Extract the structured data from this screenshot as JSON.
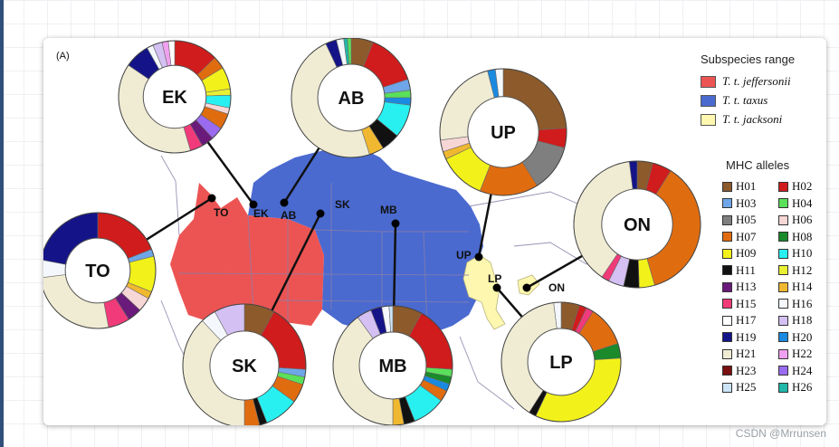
{
  "panel_label": "(A)",
  "watermark": "CSDN @Mrrunsen",
  "legend": {
    "subspecies_title": "Subspecies range",
    "subspecies": [
      {
        "name": "T. t. jeffersonii",
        "color": "#ec5454"
      },
      {
        "name": "T. t. taxus",
        "color": "#4a6ad0"
      },
      {
        "name": "T. t. jacksoni",
        "color": "#fdf7b0"
      }
    ],
    "alleles_title": "MHC alleles",
    "alleles": [
      {
        "id": "H01",
        "color": "#8c5a2b"
      },
      {
        "id": "H02",
        "color": "#d01c1c"
      },
      {
        "id": "H03",
        "color": "#6ea6e8"
      },
      {
        "id": "H04",
        "color": "#5ae05a"
      },
      {
        "id": "H05",
        "color": "#7f7f7f"
      },
      {
        "id": "H06",
        "color": "#f7d6d6"
      },
      {
        "id": "H07",
        "color": "#e06c10"
      },
      {
        "id": "H08",
        "color": "#1a8a2a"
      },
      {
        "id": "H09",
        "color": "#f2f21a"
      },
      {
        "id": "H10",
        "color": "#28f0f0"
      },
      {
        "id": "H11",
        "color": "#111111"
      },
      {
        "id": "H12",
        "color": "#e8f032"
      },
      {
        "id": "H13",
        "color": "#6a1a7a"
      },
      {
        "id": "H14",
        "color": "#f0b830"
      },
      {
        "id": "H15",
        "color": "#f03a7a"
      },
      {
        "id": "H16",
        "color": "#f4f8fc"
      },
      {
        "id": "H17",
        "color": "#ffffff"
      },
      {
        "id": "H18",
        "color": "#d4c0f2"
      },
      {
        "id": "H19",
        "color": "#141488"
      },
      {
        "id": "H20",
        "color": "#1a8ae0"
      },
      {
        "id": "H21",
        "color": "#f0ecd4"
      },
      {
        "id": "H22",
        "color": "#f0a0f0"
      },
      {
        "id": "H23",
        "color": "#7a1010"
      },
      {
        "id": "H24",
        "color": "#9a6af0"
      },
      {
        "id": "H25",
        "color": "#cce4f8"
      },
      {
        "id": "H26",
        "color": "#20b8a8"
      }
    ]
  },
  "sites": [
    {
      "code": "EK",
      "pie_label": "EK"
    },
    {
      "code": "AB",
      "pie_label": "AB"
    },
    {
      "code": "UP",
      "pie_label": "UP"
    },
    {
      "code": "TO",
      "pie_label": "TO"
    },
    {
      "code": "SK",
      "pie_label": "SK"
    },
    {
      "code": "MB",
      "pie_label": "MB"
    },
    {
      "code": "LP",
      "pie_label": "LP"
    },
    {
      "code": "ON",
      "pie_label": "ON"
    }
  ],
  "pies": {
    "EK": [
      [
        "H02",
        0.14
      ],
      [
        "H07",
        0.04
      ],
      [
        "H09",
        0.07
      ],
      [
        "H12",
        0.02
      ],
      [
        "H10",
        0.04
      ],
      [
        "H06",
        0.02
      ],
      [
        "H07",
        0.05
      ],
      [
        "H24",
        0.04
      ],
      [
        "H13",
        0.04
      ],
      [
        "H15",
        0.04
      ],
      [
        "H21",
        0.43
      ],
      [
        "H19",
        0.08
      ],
      [
        "H16",
        0.02
      ],
      [
        "H18",
        0.03
      ],
      [
        "H22",
        0.02
      ],
      [
        "H17",
        0.02
      ]
    ],
    "AB": [
      [
        "H01",
        0.06
      ],
      [
        "H02",
        0.14
      ],
      [
        "H03",
        0.03
      ],
      [
        "H04",
        0.02
      ],
      [
        "H20",
        0.02
      ],
      [
        "H10",
        0.09
      ],
      [
        "H11",
        0.05
      ],
      [
        "H14",
        0.04
      ],
      [
        "H21",
        0.48
      ],
      [
        "H19",
        0.03
      ],
      [
        "H16",
        0.02
      ],
      [
        "H26",
        0.01
      ],
      [
        "H04",
        0.01
      ]
    ],
    "UP": [
      [
        "H01",
        0.24
      ],
      [
        "H02",
        0.05
      ],
      [
        "H05",
        0.12
      ],
      [
        "H07",
        0.15
      ],
      [
        "H09",
        0.12
      ],
      [
        "H14",
        0.02
      ],
      [
        "H06",
        0.03
      ],
      [
        "H21",
        0.23
      ],
      [
        "H20",
        0.02
      ],
      [
        "H16",
        0.02
      ]
    ],
    "TO": [
      [
        "H02",
        0.19
      ],
      [
        "H03",
        0.02
      ],
      [
        "H09",
        0.1
      ],
      [
        "H14",
        0.02
      ],
      [
        "H06",
        0.04
      ],
      [
        "H13",
        0.04
      ],
      [
        "H15",
        0.06
      ],
      [
        "H21",
        0.26
      ],
      [
        "H16",
        0.05
      ],
      [
        "H19",
        0.22
      ]
    ],
    "SK": [
      [
        "H01",
        0.08
      ],
      [
        "H02",
        0.18
      ],
      [
        "H03",
        0.02
      ],
      [
        "H04",
        0.02
      ],
      [
        "H07",
        0.05
      ],
      [
        "H10",
        0.09
      ],
      [
        "H11",
        0.02
      ],
      [
        "H07",
        0.04
      ],
      [
        "H21",
        0.38
      ],
      [
        "H16",
        0.04
      ],
      [
        "H18",
        0.08
      ]
    ],
    "MB": [
      [
        "H01",
        0.08
      ],
      [
        "H02",
        0.18
      ],
      [
        "H04",
        0.02
      ],
      [
        "H08",
        0.02
      ],
      [
        "H20",
        0.02
      ],
      [
        "H07",
        0.03
      ],
      [
        "H10",
        0.09
      ],
      [
        "H11",
        0.03
      ],
      [
        "H14",
        0.03
      ],
      [
        "H21",
        0.4
      ],
      [
        "H18",
        0.04
      ],
      [
        "H19",
        0.03
      ],
      [
        "H16",
        0.02
      ],
      [
        "H25",
        0.01
      ]
    ],
    "LP": [
      [
        "H01",
        0.05
      ],
      [
        "H02",
        0.02
      ],
      [
        "H15",
        0.02
      ],
      [
        "H07",
        0.11
      ],
      [
        "H08",
        0.04
      ],
      [
        "H09",
        0.33
      ],
      [
        "H11",
        0.02
      ],
      [
        "H21",
        0.39
      ],
      [
        "H16",
        0.02
      ]
    ],
    "ON": [
      [
        "H01",
        0.04
      ],
      [
        "H02",
        0.05
      ],
      [
        "H07",
        0.37
      ],
      [
        "H09",
        0.04
      ],
      [
        "H11",
        0.04
      ],
      [
        "H18",
        0.04
      ],
      [
        "H15",
        0.02
      ],
      [
        "H21",
        0.39
      ],
      [
        "H19",
        0.02
      ]
    ]
  }
}
